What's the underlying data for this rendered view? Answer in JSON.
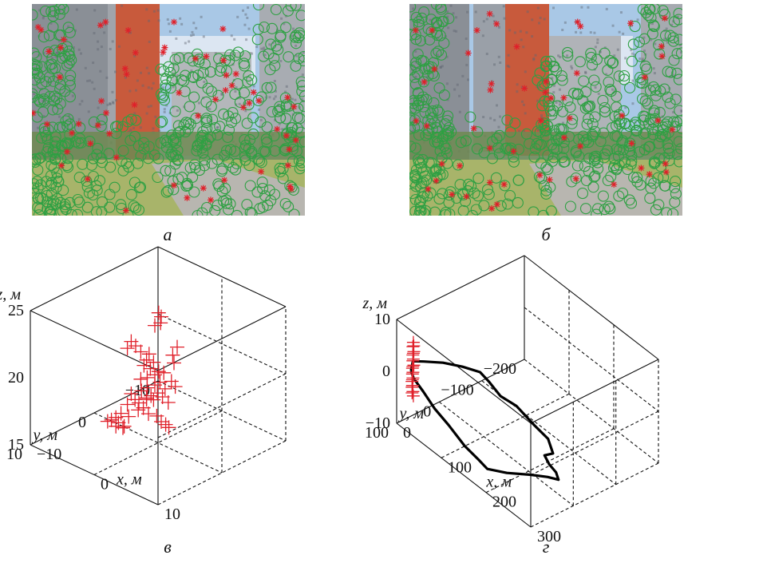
{
  "captions": {
    "a": "а",
    "b": "б",
    "c": "в",
    "d": "г"
  },
  "colors": {
    "marker_green": "#2ea043",
    "marker_red": "#e0202a",
    "trajectory": "#000000",
    "sky": "#a9c8e6",
    "building_red": "#c85a3c",
    "grass": "#a8b46a"
  },
  "photo_a": {
    "green_markers": 520,
    "red_markers": 60
  },
  "photo_b": {
    "green_markers": 540,
    "red_markers": 55
  },
  "chart_data": [
    {
      "type": "scatter3d",
      "panel": "в",
      "axes": {
        "x": {
          "label": "x, м",
          "ticks": [
            "−10",
            "0",
            "10"
          ],
          "range": [
            -10,
            10
          ]
        },
        "y": {
          "label": "y, м",
          "ticks": [
            "−10",
            "0",
            "10"
          ],
          "range": [
            -10,
            10
          ]
        },
        "z": {
          "label": "z, м",
          "ticks": [
            "15",
            "20",
            "25"
          ],
          "range": [
            15,
            25
          ]
        }
      },
      "grid": true,
      "marker": "+",
      "color": "#e0202a",
      "points": [
        [
          0.5,
          0.4,
          24.9
        ],
        [
          0.7,
          0.2,
          24.6
        ],
        [
          1.0,
          0.6,
          24.3
        ],
        [
          0.3,
          0.8,
          24.0
        ],
        [
          4.5,
          1.5,
          23.5
        ],
        [
          4.8,
          2.5,
          23.2
        ],
        [
          5.3,
          2.8,
          22.8
        ],
        [
          -1.2,
          3.0,
          23.0
        ],
        [
          -1.0,
          2.5,
          22.6
        ],
        [
          -0.5,
          2.2,
          22.2
        ],
        [
          -1.5,
          3.3,
          22.5
        ],
        [
          0.1,
          1.5,
          22.0
        ],
        [
          0.0,
          1.8,
          21.6
        ],
        [
          0.5,
          1.2,
          21.4
        ],
        [
          -0.2,
          2.0,
          21.2
        ],
        [
          0.4,
          1.6,
          21.0
        ],
        [
          1.1,
          1.0,
          20.8
        ],
        [
          0.9,
          1.4,
          20.6
        ],
        [
          0.3,
          2.0,
          20.4
        ],
        [
          -0.4,
          2.3,
          20.2
        ],
        [
          1.5,
          0.6,
          20.7
        ],
        [
          1.2,
          0.9,
          20.0
        ],
        [
          0.8,
          1.3,
          19.8
        ],
        [
          0.2,
          1.9,
          19.6
        ],
        [
          1.6,
          0.5,
          19.5
        ],
        [
          1.0,
          1.1,
          19.2
        ],
        [
          0.5,
          1.6,
          19.0
        ],
        [
          -0.2,
          2.4,
          19.4
        ],
        [
          1.4,
          0.7,
          18.9
        ],
        [
          0.7,
          1.4,
          18.7
        ],
        [
          1.9,
          0.3,
          18.5
        ],
        [
          2.2,
          0.1,
          20.1
        ],
        [
          2.5,
          -0.2,
          19.7
        ],
        [
          -0.8,
          1.0,
          18.4
        ],
        [
          -1.0,
          0.8,
          18.2
        ],
        [
          -3.6,
          0.6,
          18.0
        ],
        [
          -3.2,
          0.4,
          17.6
        ],
        [
          -2.8,
          0.2,
          17.4
        ],
        [
          -3.9,
          0.9,
          17.2
        ],
        [
          -2.5,
          -0.2,
          17.0
        ],
        [
          -3.0,
          0.1,
          16.8
        ],
        [
          -2.0,
          -0.5,
          16.6
        ],
        [
          -4.5,
          1.3,
          16.5
        ],
        [
          -4.9,
          1.7,
          16.2
        ],
        [
          -5.3,
          2.0,
          16.0
        ],
        [
          -4.7,
          1.5,
          15.8
        ],
        [
          -4.1,
          1.2,
          15.6
        ],
        [
          -5.6,
          2.3,
          15.9
        ],
        [
          -3.8,
          0.8,
          16.3
        ],
        [
          -1.0,
          -1.5,
          16.0
        ],
        [
          -0.6,
          -1.8,
          15.8
        ],
        [
          -1.4,
          -1.2,
          16.4
        ],
        [
          -0.3,
          -2.0,
          15.6
        ],
        [
          -5.0,
          1.6,
          15.5
        ],
        [
          -4.4,
          1.1,
          15.4
        ]
      ]
    },
    {
      "type": "line3d",
      "panel": "г",
      "axes": {
        "x": {
          "label": "x, м",
          "ticks": [
            "0",
            "100",
            "200",
            "300"
          ],
          "range": [
            0,
            300
          ]
        },
        "y": {
          "label": "y, м",
          "ticks": [
            "−200",
            "−100",
            "0",
            "100"
          ],
          "range": [
            -200,
            100
          ]
        },
        "z": {
          "label": "z, м",
          "ticks": [
            "−10",
            "0",
            "10"
          ],
          "range": [
            -10,
            10
          ]
        }
      },
      "grid": true,
      "series": [
        {
          "kind": "trajectory",
          "color": "#000000",
          "points": [
            [
              -25,
              40,
              -4
            ],
            [
              0,
              60,
              -3
            ],
            [
              40,
              80,
              -2
            ],
            [
              90,
              105,
              -1
            ],
            [
              140,
              125,
              0
            ],
            [
              200,
              150,
              1
            ],
            [
              245,
              165,
              2
            ],
            [
              260,
              160,
              1
            ],
            [
              275,
              130,
              0
            ],
            [
              290,
              90,
              -1
            ],
            [
              300,
              60,
              -2
            ],
            [
              305,
              40,
              -3
            ],
            [
              290,
              30,
              -3
            ],
            [
              270,
              25,
              -3
            ],
            [
              250,
              15,
              -3
            ],
            [
              245,
              -10,
              -4
            ],
            [
              215,
              -30,
              -4
            ],
            [
              170,
              -45,
              -5
            ],
            [
              120,
              -55,
              -5
            ],
            [
              80,
              -60,
              -6
            ],
            [
              45,
              -70,
              -6
            ],
            [
              20,
              -75,
              -6
            ],
            [
              -5,
              -60,
              -6
            ],
            [
              -20,
              -30,
              -5
            ],
            [
              -30,
              5,
              -4
            ],
            [
              -40,
              20,
              -4
            ],
            [
              -25,
              40,
              -4
            ]
          ]
        },
        {
          "kind": "points",
          "color": "#e0202a",
          "marker": "+",
          "points": [
            [
              -18,
              42,
              2
            ],
            [
              -16,
              43,
              1.5
            ],
            [
              -20,
              41,
              1
            ],
            [
              -15,
              44,
              0.5
            ],
            [
              -17,
              43,
              0
            ],
            [
              -19,
              42,
              -0.5
            ],
            [
              -16,
              44,
              -1
            ],
            [
              -18,
              43,
              -1.5
            ],
            [
              -14,
              45,
              -2
            ],
            [
              -17,
              44,
              -2.5
            ],
            [
              -19,
              43,
              -3
            ],
            [
              -16,
              45,
              -3.5
            ],
            [
              -18,
              44,
              -4
            ],
            [
              -15,
              46,
              -4.5
            ],
            [
              -17,
              45,
              -5
            ],
            [
              -19,
              44,
              -5.5
            ],
            [
              -16,
              46,
              -6
            ],
            [
              -18,
              45,
              -6.5
            ],
            [
              -14,
              47,
              -7
            ],
            [
              -17,
              46,
              -7.5
            ],
            [
              -15,
              45,
              -8
            ]
          ]
        }
      ]
    }
  ]
}
